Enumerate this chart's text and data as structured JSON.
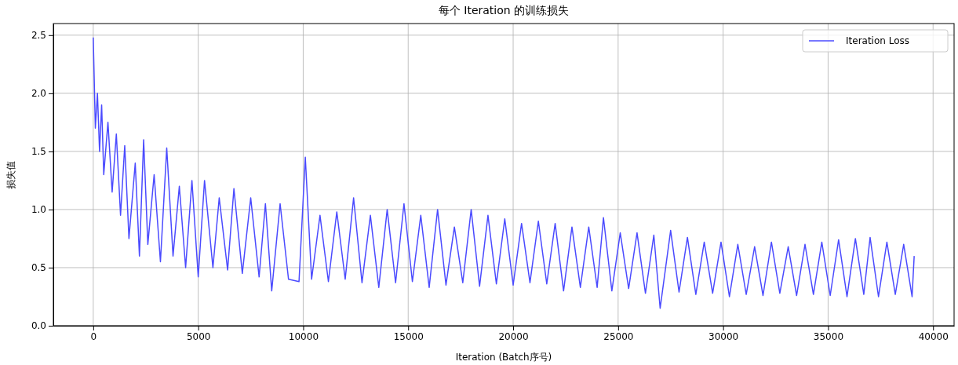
{
  "chart_data": {
    "type": "line",
    "title": "每个 Iteration 的训练损失",
    "xlabel": "Iteration (Batch序号)",
    "ylabel": "损失值",
    "xlim": [
      -1900,
      41000
    ],
    "ylim": [
      0,
      2.6
    ],
    "xticks": [
      0,
      5000,
      10000,
      15000,
      20000,
      25000,
      30000,
      35000,
      40000
    ],
    "yticks": [
      {
        "value": 0,
        "label": "0.0"
      },
      {
        "value": 0.5,
        "label": "0.5"
      },
      {
        "value": 1,
        "label": "1.0"
      },
      {
        "value": 1.5,
        "label": "1.5"
      },
      {
        "value": 2,
        "label": "2.0"
      },
      {
        "value": 2.5,
        "label": "2.5"
      }
    ],
    "grid": true,
    "legend": "top right",
    "marker": "none",
    "line_style": "solid",
    "series": [
      {
        "name": "Iteration Loss",
        "color": "#4b4bff",
        "x": [
          0,
          100,
          200,
          300,
          400,
          500,
          700,
          900,
          1100,
          1300,
          1500,
          1700,
          2000,
          2200,
          2400,
          2600,
          2900,
          3200,
          3500,
          3800,
          4100,
          4400,
          4700,
          5000,
          5300,
          5700,
          6000,
          6400,
          6700,
          7100,
          7500,
          7900,
          8200,
          8500,
          8900,
          9300,
          9800,
          10100,
          10400,
          10800,
          11200,
          11600,
          12000,
          12400,
          12800,
          13200,
          13600,
          14000,
          14400,
          14800,
          15200,
          15600,
          16000,
          16400,
          16800,
          17200,
          17600,
          18000,
          18400,
          18800,
          19200,
          19600,
          20000,
          20400,
          20800,
          21200,
          21600,
          22000,
          22400,
          22800,
          23200,
          23600,
          24000,
          24300,
          24700,
          25100,
          25500,
          25900,
          26300,
          26700,
          27000,
          27500,
          27900,
          28300,
          28700,
          29100,
          29500,
          29900,
          30300,
          30700,
          31100,
          31500,
          31900,
          32300,
          32700,
          33100,
          33500,
          33900,
          34300,
          34700,
          35100,
          35500,
          35900,
          36300,
          36700,
          37000,
          37400,
          37800,
          38200,
          38600,
          39000,
          39100
        ],
        "values": [
          2.48,
          1.7,
          2.0,
          1.5,
          1.9,
          1.3,
          1.75,
          1.15,
          1.65,
          0.95,
          1.55,
          0.75,
          1.4,
          0.6,
          1.6,
          0.7,
          1.3,
          0.55,
          1.53,
          0.6,
          1.2,
          0.5,
          1.25,
          0.42,
          1.25,
          0.5,
          1.1,
          0.48,
          1.18,
          0.45,
          1.1,
          0.42,
          1.05,
          0.3,
          1.05,
          0.4,
          0.38,
          1.45,
          0.4,
          0.95,
          0.38,
          0.98,
          0.4,
          1.1,
          0.37,
          0.95,
          0.33,
          1.0,
          0.37,
          1.05,
          0.38,
          0.95,
          0.33,
          1.0,
          0.35,
          0.85,
          0.37,
          1.0,
          0.34,
          0.95,
          0.36,
          0.92,
          0.35,
          0.88,
          0.37,
          0.9,
          0.36,
          0.88,
          0.3,
          0.85,
          0.33,
          0.85,
          0.33,
          0.93,
          0.3,
          0.8,
          0.32,
          0.8,
          0.28,
          0.78,
          0.15,
          0.82,
          0.29,
          0.76,
          0.27,
          0.72,
          0.28,
          0.72,
          0.25,
          0.7,
          0.27,
          0.68,
          0.26,
          0.72,
          0.28,
          0.68,
          0.26,
          0.7,
          0.27,
          0.72,
          0.26,
          0.74,
          0.25,
          0.75,
          0.27,
          0.76,
          0.25,
          0.72,
          0.27,
          0.7,
          0.25,
          0.6
        ]
      }
    ]
  }
}
